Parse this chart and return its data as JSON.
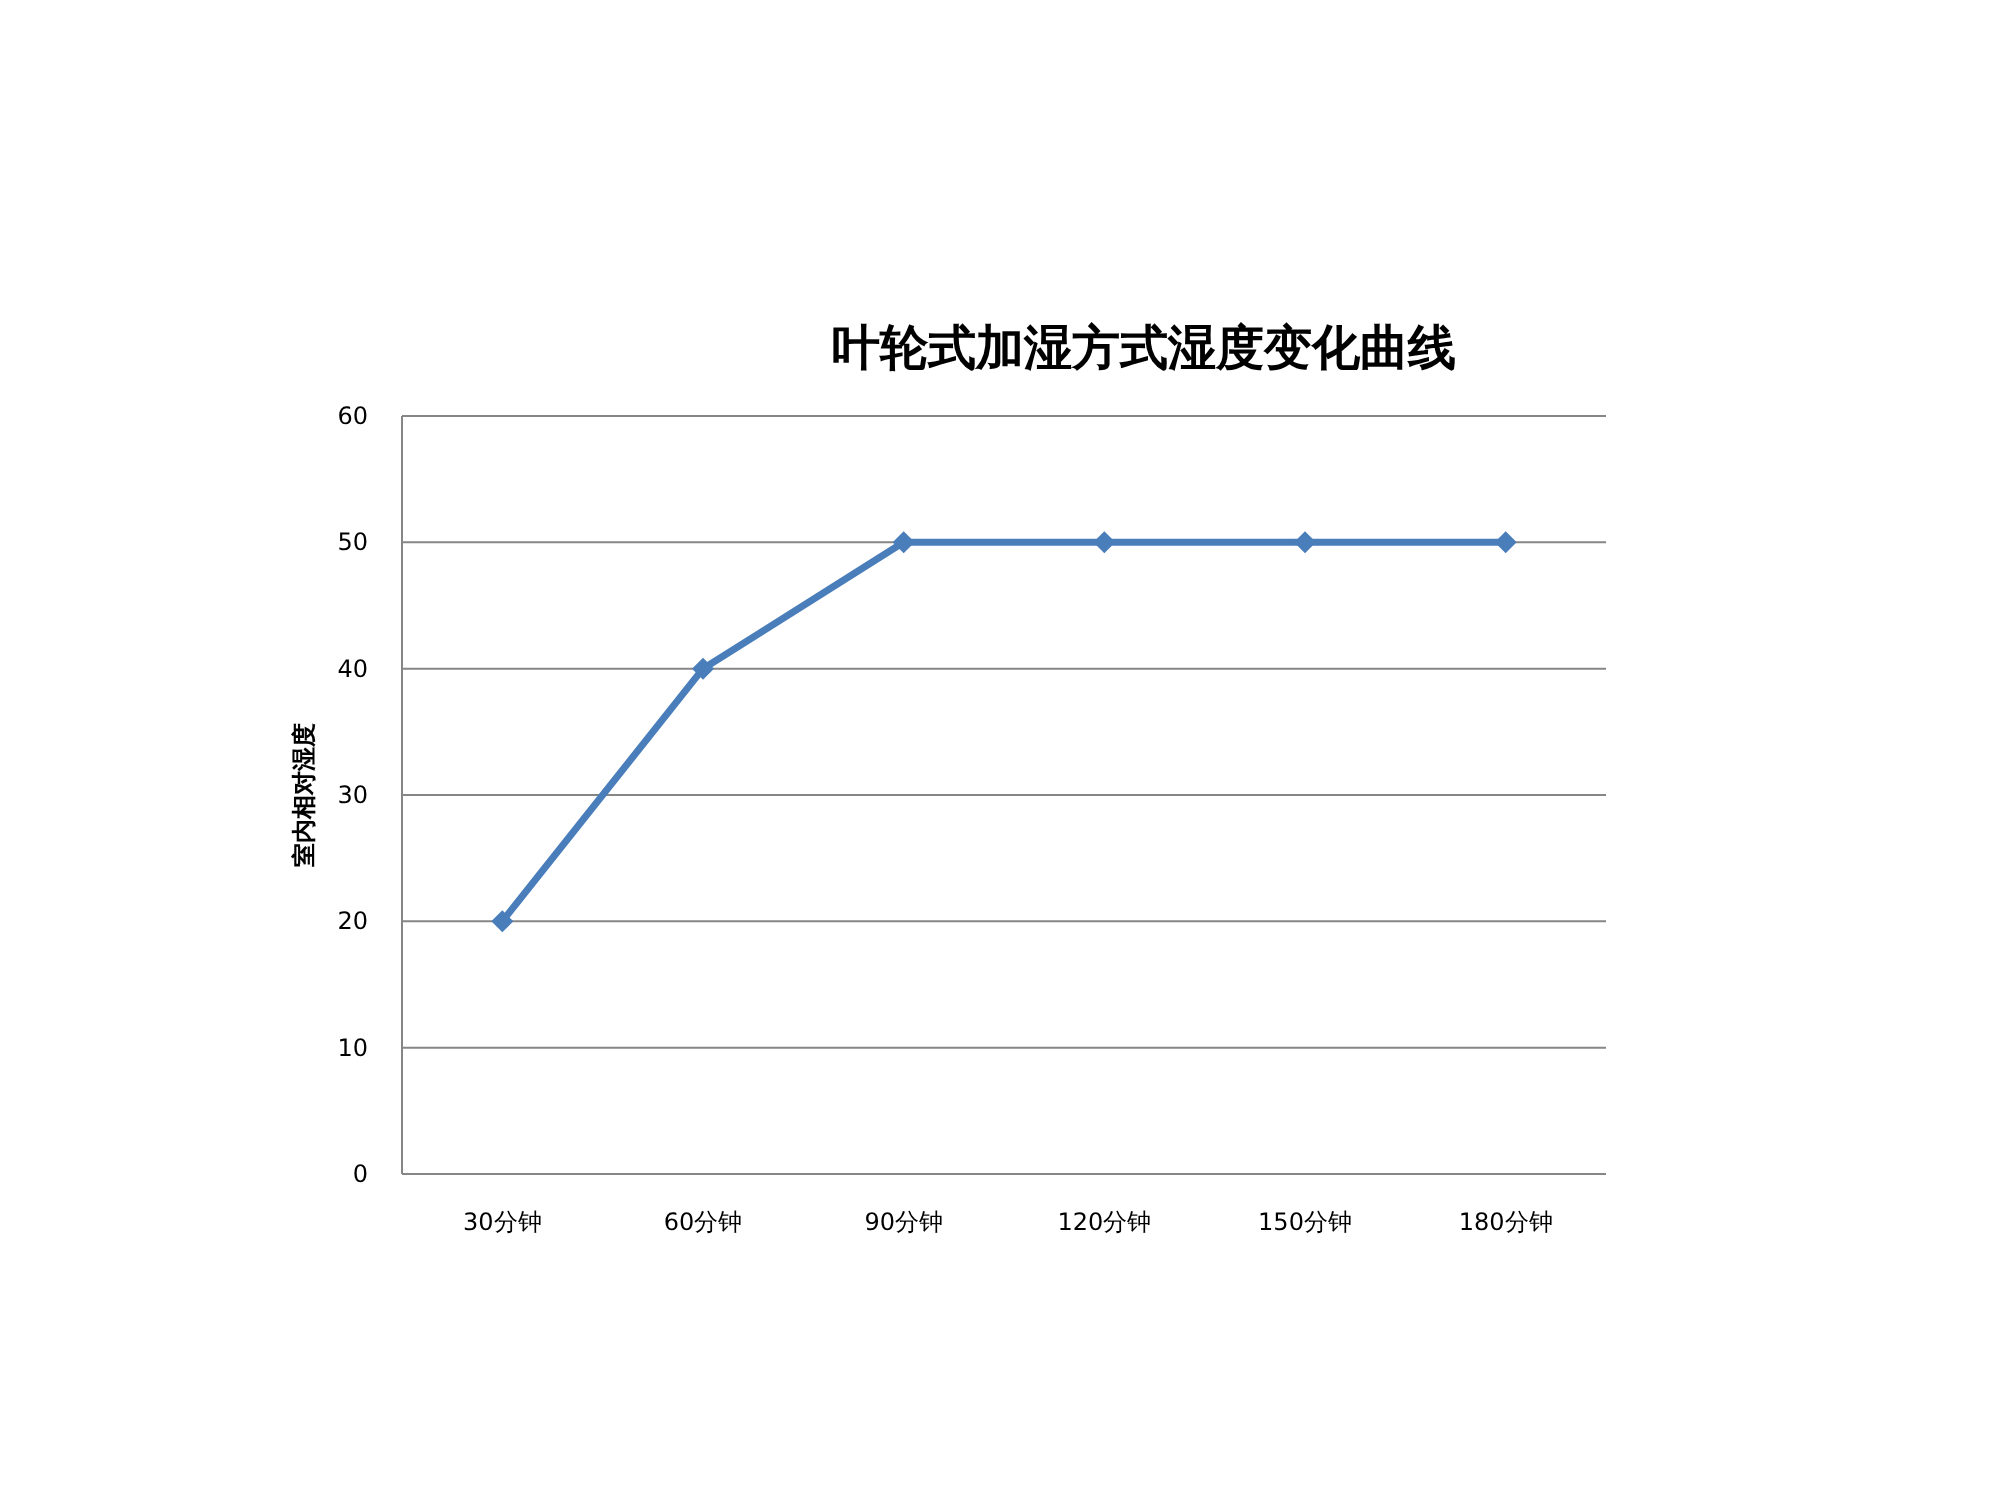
{
  "chart_data": {
    "type": "line",
    "title": "叶轮式加湿方式湿度变化曲线",
    "ylabel": "室内相对湿度",
    "categories": [
      "30分钟",
      "60分钟",
      "90分钟",
      "120分钟",
      "150分钟",
      "180分钟"
    ],
    "series": [
      {
        "color": "#4a7ebb",
        "values": [
          20,
          40,
          50,
          50,
          50,
          50
        ]
      }
    ],
    "ylim": [
      0,
      60
    ],
    "yticks": [
      0,
      10,
      20,
      30,
      40,
      50,
      60
    ],
    "grid": "y",
    "marker": "diamond",
    "line_style": "solid"
  }
}
